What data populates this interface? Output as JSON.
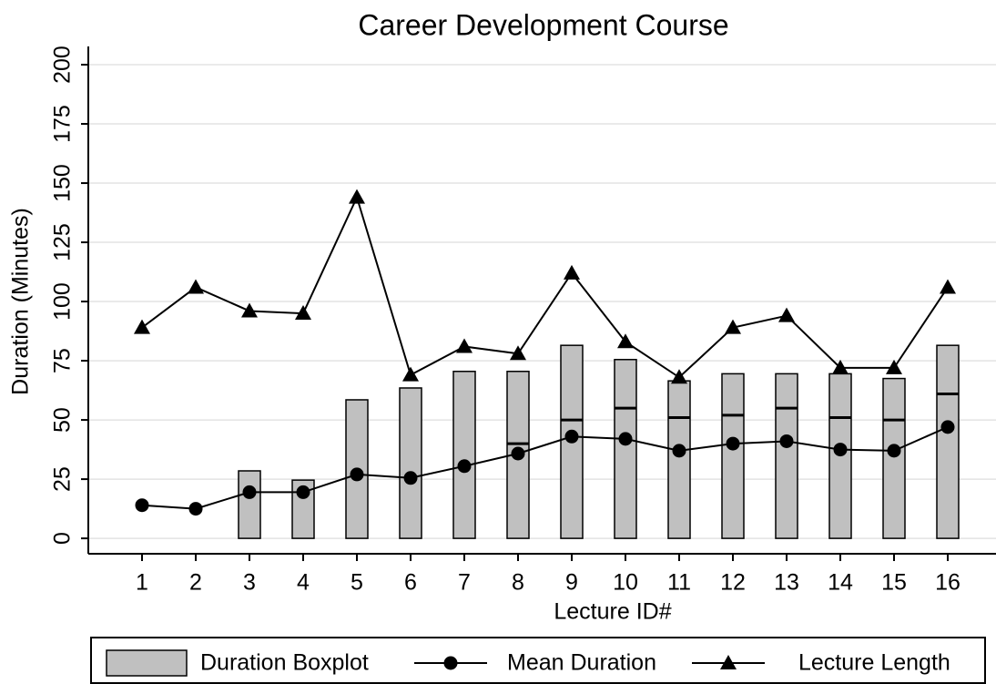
{
  "chart_data": {
    "type": "boxline",
    "title": "Career Development Course",
    "x_label": "Lecture ID#",
    "y_label": "Duration (Minutes)",
    "categories": [
      "1",
      "2",
      "3",
      "4",
      "5",
      "6",
      "7",
      "8",
      "9",
      "10",
      "11",
      "12",
      "13",
      "14",
      "15",
      "16"
    ],
    "boxes": {
      "name": "Duration Boxplot",
      "color": "#c0c0c0",
      "q1": [
        null,
        null,
        0,
        0,
        0,
        0,
        0,
        0,
        0,
        0,
        0,
        0,
        0,
        0,
        0,
        0
      ],
      "q3": [
        null,
        null,
        28.5,
        24.6,
        58.5,
        63.5,
        70.5,
        70.5,
        81.5,
        75.5,
        66.5,
        69.5,
        69.5,
        69.5,
        67.5,
        81.5
      ],
      "median": [
        null,
        null,
        null,
        null,
        null,
        null,
        null,
        40,
        50,
        55,
        51,
        52,
        55,
        51,
        50,
        61
      ]
    },
    "series": [
      {
        "name": "Mean Duration",
        "color": "#000000",
        "marker": "circle",
        "values": [
          14,
          12.5,
          19.5,
          19.5,
          27,
          25.5,
          30.5,
          35.8,
          43,
          42,
          37,
          40,
          41,
          37.5,
          37,
          47
        ]
      },
      {
        "name": "Lecture Length",
        "color": "#000000",
        "marker": "triangle",
        "values": [
          89,
          106,
          96,
          95,
          144,
          69,
          81,
          78,
          112,
          83,
          68,
          89,
          94,
          72,
          72,
          106
        ]
      }
    ],
    "ylim": [
      -6.5,
      207.7
    ],
    "yticks": [
      0,
      25,
      50,
      75,
      100,
      125,
      150,
      175,
      200
    ],
    "grid": true
  }
}
